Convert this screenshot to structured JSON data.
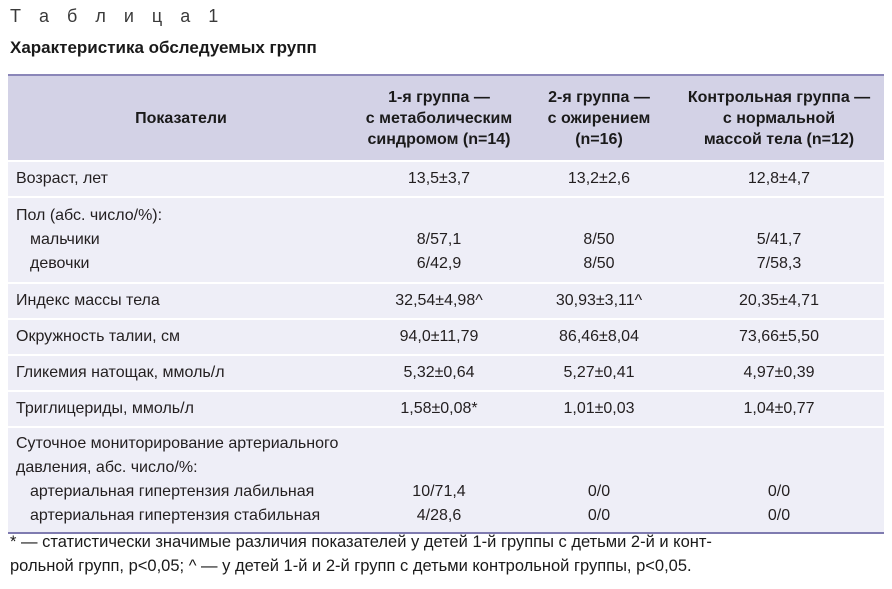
{
  "table_label": "Т а б л и ц а 1",
  "table_title": "Характеристика обследуемых групп",
  "headers": {
    "col0": "Показатели",
    "col1": [
      "1-я группа —",
      "с метаболическим",
      "синдромом (n=14)"
    ],
    "col2": [
      "2-я группа —",
      "с ожирением",
      "(n=16)"
    ],
    "col3": [
      "Контрольная группа —",
      "с нормальной",
      "массой тела (n=12)"
    ]
  },
  "rows": [
    {
      "label": "Возраст, лет",
      "v1": "13,5±3,7",
      "v2": "13,2±2,6",
      "v3": "12,8±4,7"
    },
    {
      "label": "Пол (абс. число/%):",
      "sub": [
        {
          "label": "мальчики",
          "v1": "8/57,1",
          "v2": "8/50",
          "v3": "5/41,7"
        },
        {
          "label": "девочки",
          "v1": "6/42,9",
          "v2": "8/50",
          "v3": "7/58,3"
        }
      ]
    },
    {
      "label": "Индекс массы тела",
      "v1": "32,54±4,98^",
      "v2": "30,93±3,11^",
      "v3": "20,35±4,71"
    },
    {
      "label": "Окружность талии, см",
      "v1": "94,0±11,79",
      "v2": "86,46±8,04",
      "v3": "73,66±5,50"
    },
    {
      "label": "Гликемия натощак, ммоль/л",
      "v1": "5,32±0,64",
      "v2": "5,27±0,41",
      "v3": "4,97±0,39"
    },
    {
      "label": "Триглицериды, ммоль/л",
      "v1": "1,58±0,08*",
      "v2": "1,01±0,03",
      "v3": "1,04±0,77"
    },
    {
      "label": [
        "Суточное мониторирование артериального",
        "давления, абс. число/%:"
      ],
      "sub": [
        {
          "label": "артериальная гипертензия лабильная",
          "v1": "10/71,4",
          "v2": "0/0",
          "v3": "0/0"
        },
        {
          "label": "артериальная гипертензия стабильная",
          "v1": "4/28,6",
          "v2": "0/0",
          "v3": "0/0"
        }
      ]
    }
  ],
  "footnote": [
    "* — статистически значимые различия показателей у детей 1-й группы с детьми 2-й и конт-",
    "рольной групп, p<0,05; ^ — у детей 1-й и 2-й групп с детьми контрольной группы, p<0,05."
  ]
}
